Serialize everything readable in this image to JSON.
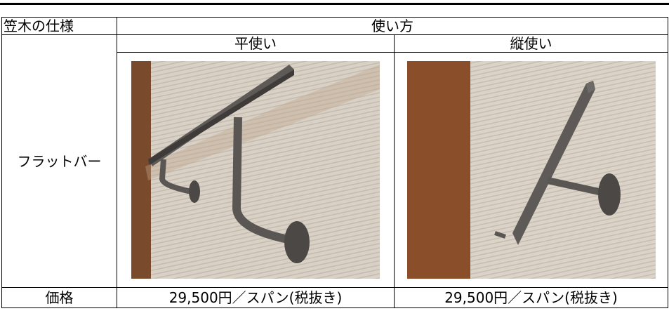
{
  "table": {
    "header": {
      "spec": "笠木の仕様",
      "usage": "使い方"
    },
    "subheader": {
      "flat": "平使い",
      "vertical": "縦使い"
    },
    "row_label": "フラットバー",
    "price_label": "価格",
    "prices": [
      "29,500円／スパン(税抜き)",
      "29,500円／スパン(税抜き)"
    ]
  }
}
